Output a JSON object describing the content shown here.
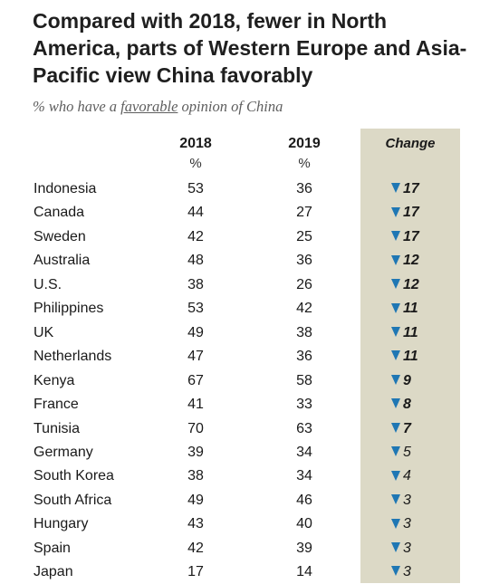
{
  "title": "Compared with 2018, fewer in North America, parts of Western Europe and Asia-Pacific view China favorably",
  "subtitle_pre": "% who have a ",
  "subtitle_ul": "favorable",
  "subtitle_post": " opinion of China",
  "columns": {
    "y2018": "2018",
    "y2019": "2019",
    "change": "Change",
    "unit": "%"
  },
  "colors": {
    "change_bg": "#dcd9c6",
    "arrow": "#1f77b4"
  },
  "chart_data": {
    "type": "table",
    "title": "Compared with 2018, fewer in North America, parts of Western Europe and Asia-Pacific view China favorably",
    "subtitle": "% who have a favorable opinion of China",
    "columns": [
      "2018",
      "2019",
      "Change"
    ],
    "rows": [
      {
        "country": "Indonesia",
        "y2018": 53,
        "y2019": 36,
        "change": 17
      },
      {
        "country": "Canada",
        "y2018": 44,
        "y2019": 27,
        "change": 17
      },
      {
        "country": "Sweden",
        "y2018": 42,
        "y2019": 25,
        "change": 17
      },
      {
        "country": "Australia",
        "y2018": 48,
        "y2019": 36,
        "change": 12
      },
      {
        "country": "U.S.",
        "y2018": 38,
        "y2019": 26,
        "change": 12
      },
      {
        "country": "Philippines",
        "y2018": 53,
        "y2019": 42,
        "change": 11
      },
      {
        "country": "UK",
        "y2018": 49,
        "y2019": 38,
        "change": 11
      },
      {
        "country": "Netherlands",
        "y2018": 47,
        "y2019": 36,
        "change": 11
      },
      {
        "country": "Kenya",
        "y2018": 67,
        "y2019": 58,
        "change": 9
      },
      {
        "country": "France",
        "y2018": 41,
        "y2019": 33,
        "change": 8
      },
      {
        "country": "Tunisia",
        "y2018": 70,
        "y2019": 63,
        "change": 7
      },
      {
        "country": "Germany",
        "y2018": 39,
        "y2019": 34,
        "change": 5
      },
      {
        "country": "South Korea",
        "y2018": 38,
        "y2019": 34,
        "change": 4
      },
      {
        "country": "South Africa",
        "y2018": 49,
        "y2019": 46,
        "change": 3
      },
      {
        "country": "Hungary",
        "y2018": 43,
        "y2019": 40,
        "change": 3
      },
      {
        "country": "Spain",
        "y2018": 42,
        "y2019": 39,
        "change": 3
      },
      {
        "country": "Japan",
        "y2018": 17,
        "y2019": 14,
        "change": 3
      }
    ]
  }
}
